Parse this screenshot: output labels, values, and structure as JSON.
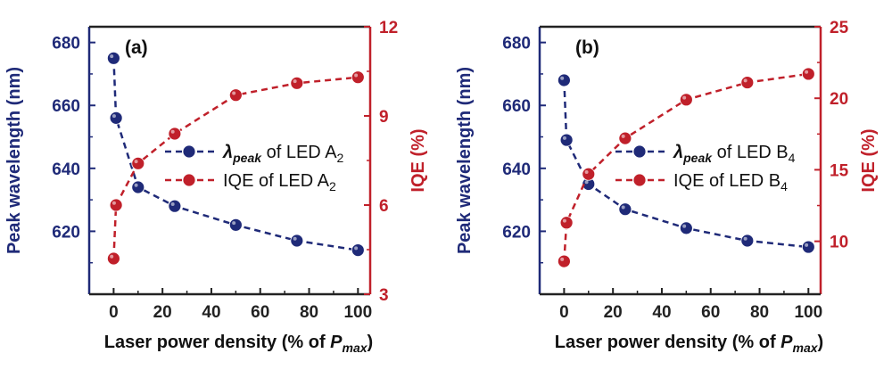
{
  "colors": {
    "wavelength": "#1f2a78",
    "iqe": "#c0202a",
    "xaxis": "#222222"
  },
  "chart_data": [
    {
      "type": "scatter",
      "panel_label": "(a)",
      "xlabel_parts": [
        "Laser power density (% of ",
        "P",
        "max",
        ")"
      ],
      "ylabel": "Peak wavelength (nm)",
      "y2label": "IQE (%)",
      "xlim": [
        -10,
        105
      ],
      "xticks": [
        0,
        20,
        40,
        60,
        80,
        100
      ],
      "ylim": [
        600,
        685
      ],
      "yticks": [
        620,
        640,
        660,
        680
      ],
      "y2lim": [
        3,
        12
      ],
      "y2ticks": [
        3,
        6,
        9,
        12
      ],
      "series": [
        {
          "legend_parts": [
            "λ",
            "peak",
            " of LED A",
            "2"
          ],
          "axis": "left",
          "x": [
            0,
            1,
            10,
            25,
            50,
            75,
            100
          ],
          "y": [
            675,
            656,
            634,
            628,
            622,
            617,
            614
          ]
        },
        {
          "legend_parts": [
            "IQE of LED A",
            "2"
          ],
          "axis": "right",
          "x": [
            0,
            1,
            10,
            25,
            50,
            75,
            100
          ],
          "y": [
            4.2,
            6.0,
            7.4,
            8.4,
            9.7,
            10.1,
            10.3
          ]
        }
      ]
    },
    {
      "type": "scatter",
      "panel_label": "(b)",
      "xlabel_parts": [
        "Laser power density (% of ",
        "P",
        "max",
        ")"
      ],
      "ylabel": "Peak wavelength (nm)",
      "y2label": "IQE (%)",
      "xlim": [
        -10,
        105
      ],
      "xticks": [
        0,
        20,
        40,
        60,
        80,
        100
      ],
      "ylim": [
        600,
        685
      ],
      "yticks": [
        620,
        640,
        660,
        680
      ],
      "y2lim": [
        6.3,
        25
      ],
      "y2ticks": [
        10,
        15,
        20,
        25
      ],
      "series": [
        {
          "legend_parts": [
            "λ",
            "peak",
            " of LED B",
            "4"
          ],
          "axis": "left",
          "x": [
            0,
            1,
            10,
            25,
            50,
            75,
            100
          ],
          "y": [
            668,
            649,
            635,
            627,
            621,
            617,
            615
          ]
        },
        {
          "legend_parts": [
            "IQE of LED B",
            "4"
          ],
          "axis": "right",
          "x": [
            0,
            1,
            10,
            25,
            50,
            75,
            100
          ],
          "y": [
            8.6,
            11.3,
            14.7,
            17.2,
            19.9,
            21.1,
            21.7
          ]
        }
      ]
    }
  ]
}
